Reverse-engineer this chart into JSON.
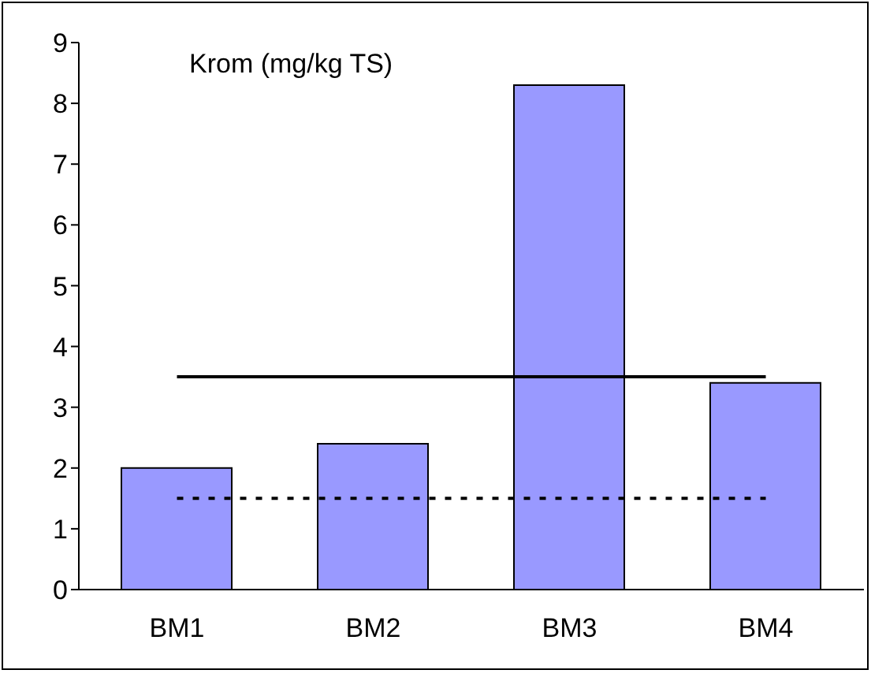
{
  "chart_data": {
    "type": "bar",
    "title": "Krom (mg/kg TS)",
    "categories": [
      "BM1",
      "BM2",
      "BM3",
      "BM4"
    ],
    "values": [
      2.0,
      2.4,
      8.3,
      3.4
    ],
    "color": "#9999ff",
    "ylim": [
      0,
      9
    ],
    "yticks": [
      0,
      1,
      2,
      3,
      4,
      5,
      6,
      7,
      8,
      9
    ],
    "grid": false,
    "legend": false,
    "ref_lines": [
      {
        "axis": "y",
        "value": 3.5,
        "color": "#000000",
        "line_style": "solid"
      },
      {
        "axis": "y",
        "value": 1.5,
        "color": "#000000",
        "line_style": "dotted"
      }
    ]
  }
}
